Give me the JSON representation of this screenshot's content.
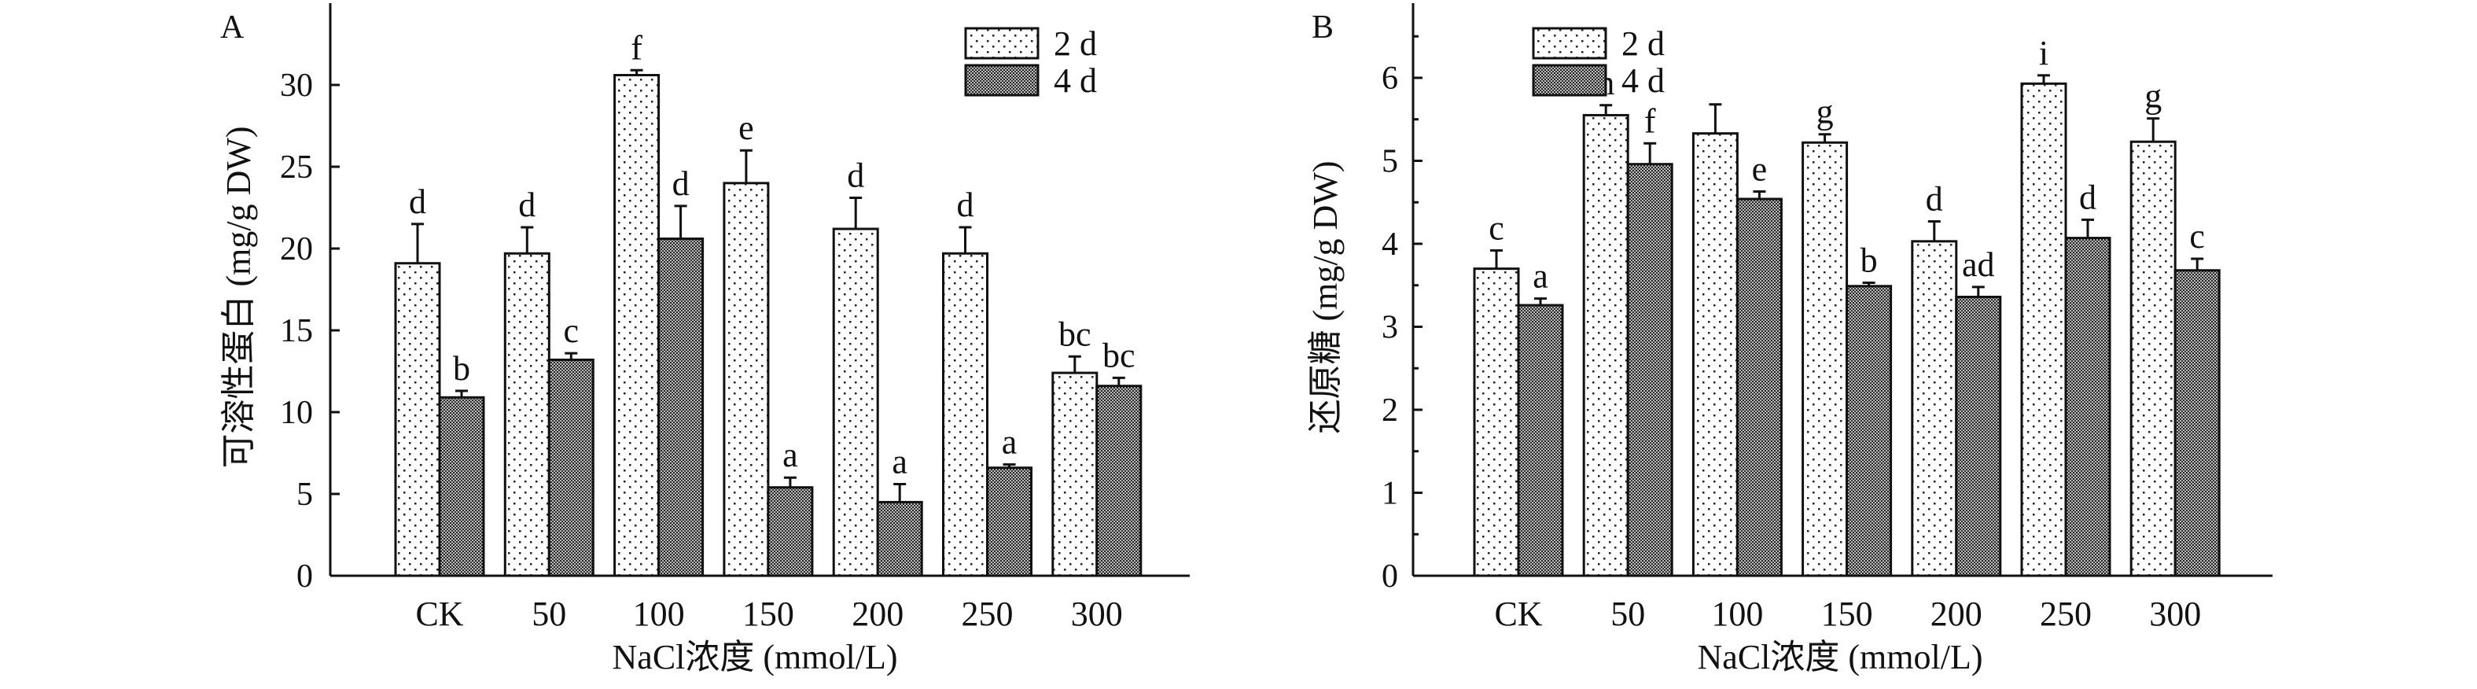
{
  "chart_data": [
    {
      "type": "bar",
      "panel": "A",
      "title": "",
      "xlabel": "NaCl浓度 (mmol/L)",
      "ylabel": "可溶性蛋白 (mg/g DW)",
      "ylim": [
        0,
        35
      ],
      "yticks": [
        0,
        5,
        10,
        15,
        20,
        25,
        30
      ],
      "categories": [
        "CK",
        "50",
        "100",
        "150",
        "200",
        "250",
        "300"
      ],
      "legend_position": "top-right",
      "series": [
        {
          "name": "2 d",
          "pattern": "sparse-dots",
          "values": [
            19.1,
            19.7,
            30.6,
            24.0,
            21.2,
            19.7,
            12.4
          ],
          "errors": [
            2.4,
            1.6,
            0.3,
            2.0,
            1.9,
            1.6,
            1.0
          ],
          "letters": [
            "d",
            "d",
            "f",
            "e",
            "d",
            "d",
            "bc"
          ]
        },
        {
          "name": "4 d",
          "pattern": "dense-checker",
          "values": [
            10.9,
            13.2,
            20.6,
            5.4,
            4.5,
            6.6,
            11.6
          ],
          "errors": [
            0.4,
            0.4,
            2.0,
            0.6,
            1.1,
            0.2,
            0.5
          ],
          "letters": [
            "b",
            "c",
            "d",
            "a",
            "a",
            "a",
            "bc"
          ]
        }
      ]
    },
    {
      "type": "bar",
      "panel": "B",
      "title": "",
      "xlabel": "NaCl浓度 (mmol/L)",
      "ylabel": "还原糖 (mg/g DW)",
      "ylim": [
        0,
        6.9
      ],
      "yticks": [
        0,
        1,
        2,
        3,
        4,
        5,
        6
      ],
      "categories": [
        "CK",
        "50",
        "100",
        "150",
        "200",
        "250",
        "300"
      ],
      "legend_position": "top-center",
      "series": [
        {
          "name": "2 d",
          "pattern": "sparse-dots",
          "values": [
            3.7,
            5.55,
            5.33,
            5.22,
            4.03,
            5.93,
            5.23
          ],
          "errors": [
            0.22,
            0.12,
            0.35,
            0.1,
            0.24,
            0.1,
            0.28
          ],
          "letters": [
            "c",
            "h",
            "",
            "g",
            "d",
            "i",
            "g"
          ]
        },
        {
          "name": "4 d",
          "pattern": "dense-checker",
          "values": [
            3.26,
            4.96,
            4.54,
            3.49,
            3.36,
            4.07,
            3.68
          ],
          "errors": [
            0.08,
            0.25,
            0.09,
            0.04,
            0.12,
            0.22,
            0.14
          ],
          "letters": [
            "a",
            "f",
            "e",
            "b",
            "ad",
            "d",
            "c"
          ]
        }
      ]
    }
  ],
  "colors": {
    "ink": "#111111",
    "background": "#ffffff"
  }
}
